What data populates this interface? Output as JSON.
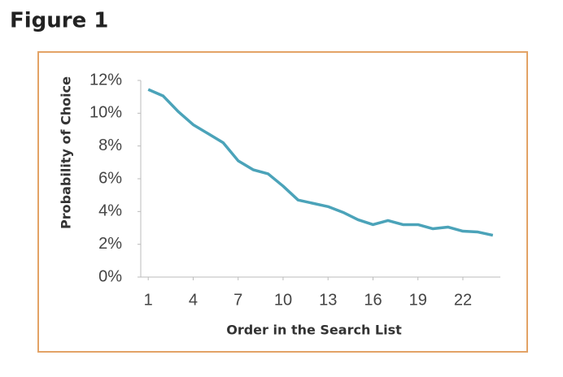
{
  "figure_label": "Figure 1",
  "chart_data": {
    "type": "line",
    "x_label": "Order in the Search List",
    "y_label": "Probability of Choice",
    "x": [
      1,
      2,
      3,
      4,
      5,
      6,
      7,
      8,
      9,
      10,
      11,
      12,
      13,
      14,
      15,
      16,
      17,
      18,
      19,
      20,
      21,
      22,
      23,
      24
    ],
    "values": [
      11.45,
      11.05,
      10.1,
      9.3,
      8.75,
      8.2,
      7.1,
      6.55,
      6.3,
      5.55,
      4.7,
      4.5,
      4.3,
      3.95,
      3.5,
      3.2,
      3.45,
      3.2,
      3.2,
      2.95,
      3.05,
      2.8,
      2.75,
      2.55
    ],
    "color": "#4ba3b9",
    "xlim": [
      0.5,
      24.5
    ],
    "xticks": [
      1,
      4,
      7,
      10,
      13,
      16,
      19,
      22
    ],
    "ylim": [
      0,
      12
    ],
    "yticks": [
      {
        "value": 0,
        "label": "0%"
      },
      {
        "value": 2,
        "label": "2%"
      },
      {
        "value": 4,
        "label": "4%"
      },
      {
        "value": 6,
        "label": "6%"
      },
      {
        "value": 8,
        "label": "8%"
      },
      {
        "value": 10,
        "label": "10%"
      },
      {
        "value": 12,
        "label": "12%"
      }
    ],
    "grid": false
  }
}
